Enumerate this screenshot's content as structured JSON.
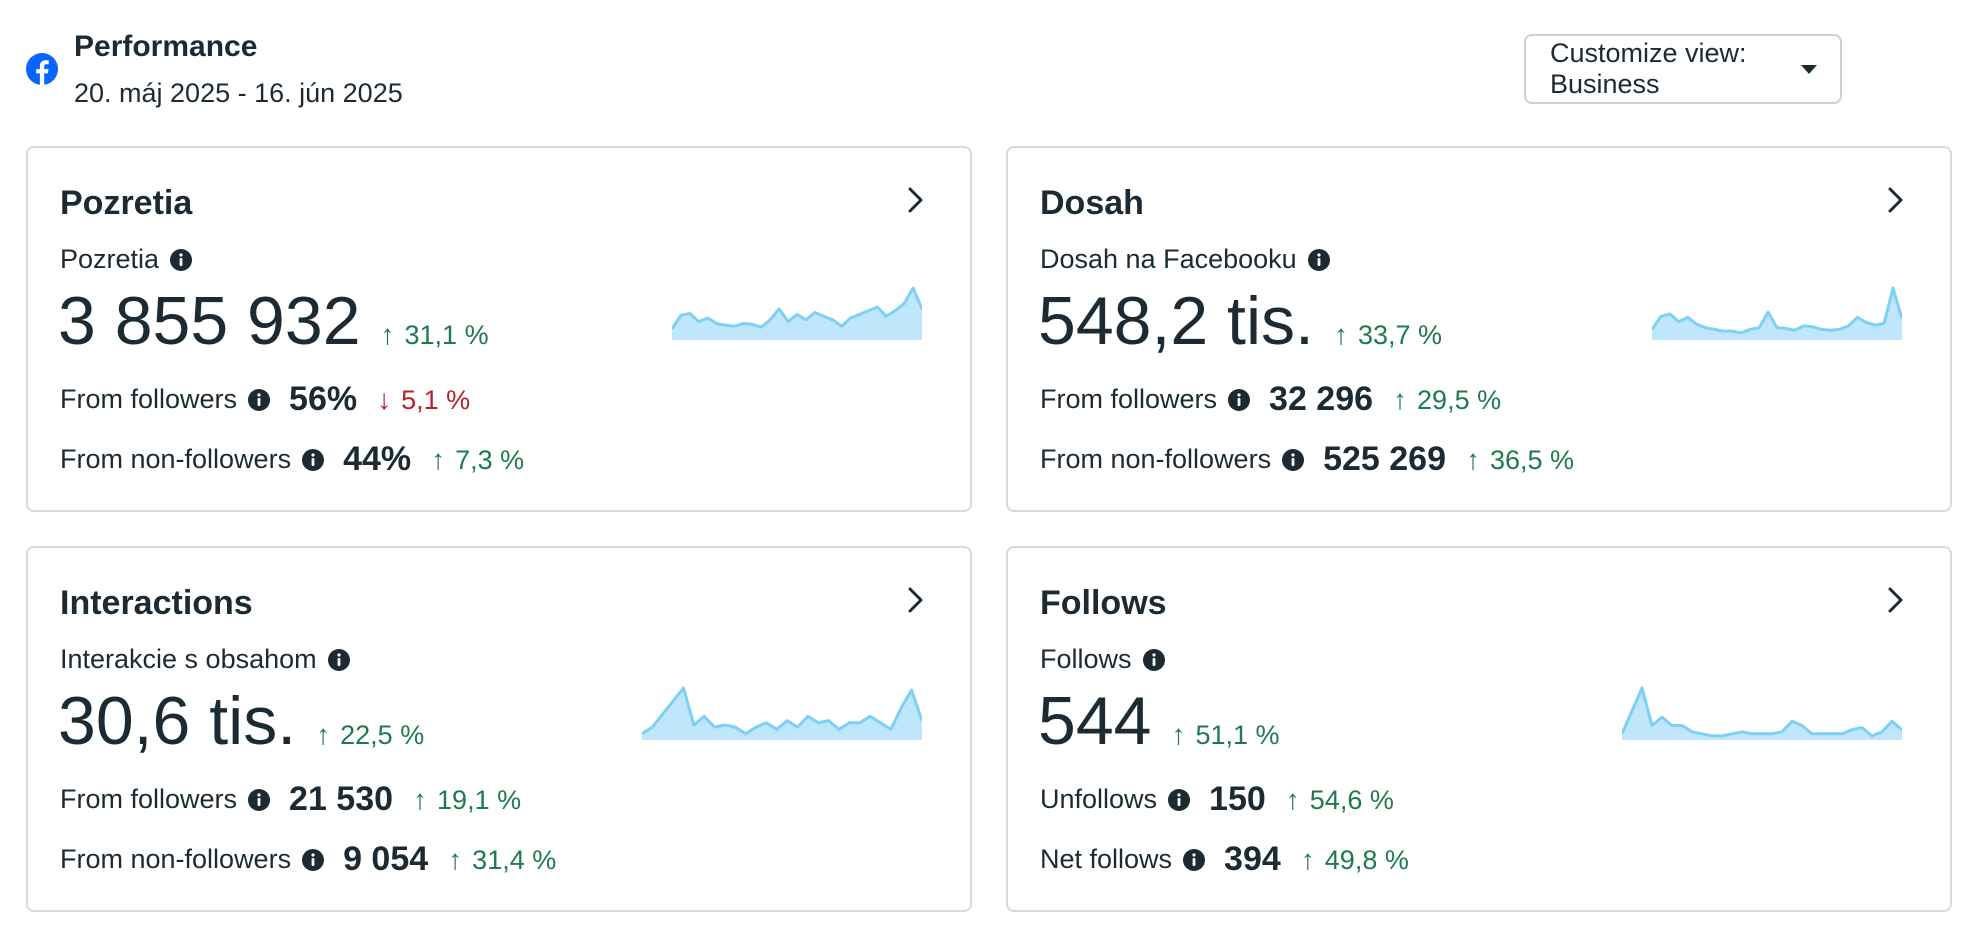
{
  "header": {
    "title": "Performance",
    "date_range": "20. máj 2025 - 16. jún 2025",
    "customize_label": "Customize view: Business",
    "logo_icon": "facebook-icon"
  },
  "colors": {
    "positive": "#1f7a4d",
    "negative": "#b8202a",
    "sparkline_stroke": "#7fd0f5",
    "sparkline_fill": "#bfe6fa",
    "facebook_blue": "#0866ff"
  },
  "cards": [
    {
      "title": "Pozretia",
      "metric_label": "Pozretia",
      "big_value": "3 855 932",
      "big_delta": "31,1 %",
      "big_dir": "up",
      "row1_label": "From followers",
      "row1_value": "56%",
      "row1_delta": "5,1 %",
      "row1_dir": "down",
      "row2_label": "From non-followers",
      "row2_value": "44%",
      "row2_delta": "7,3 %",
      "row2_dir": "up",
      "sparkline": [
        10,
        25,
        27,
        18,
        22,
        16,
        14,
        13,
        16,
        15,
        12,
        20,
        32,
        18,
        26,
        20,
        28,
        24,
        20,
        13,
        22,
        26,
        30,
        34,
        24,
        30,
        38,
        55,
        32
      ]
    },
    {
      "title": "Dosah",
      "metric_label": "Dosah na Facebooku",
      "big_value": "548,2 tis.",
      "big_delta": "33,7 %",
      "big_dir": "up",
      "row1_label": "From followers",
      "row1_value": "32 296",
      "row1_delta": "29,5 %",
      "row1_dir": "up",
      "row2_label": "From non-followers",
      "row2_value": "525 269",
      "row2_delta": "36,5 %",
      "row2_dir": "up",
      "sparkline": [
        10,
        25,
        28,
        19,
        24,
        16,
        12,
        10,
        8,
        8,
        6,
        10,
        12,
        30,
        12,
        11,
        9,
        14,
        13,
        10,
        9,
        10,
        14,
        24,
        18,
        15,
        17,
        58,
        22
      ]
    },
    {
      "title": "Interactions",
      "metric_label": "Interakcie s obsahom",
      "big_value": "30,6 tis.",
      "big_delta": "22,5 %",
      "big_dir": "up",
      "row1_label": "From followers",
      "row1_value": "21 530",
      "row1_delta": "19,1 %",
      "row1_dir": "up",
      "row2_label": "From non-followers",
      "row2_value": "9 054",
      "row2_delta": "31,4 %",
      "row2_dir": "up",
      "sparkline": [
        4,
        10,
        22,
        34,
        46,
        12,
        20,
        10,
        12,
        10,
        4,
        10,
        14,
        8,
        16,
        10,
        20,
        14,
        16,
        8,
        14,
        14,
        20,
        14,
        8,
        28,
        44,
        16
      ],
      "sparkline_wide": true
    },
    {
      "title": "Follows",
      "metric_label": "Follows",
      "big_value": "544",
      "big_delta": "51,1 %",
      "big_dir": "up",
      "row1_label": "Unfollows",
      "row1_value": "150",
      "row1_delta": "54,6 %",
      "row1_dir": "up",
      "row2_label": "Net follows",
      "row2_value": "394",
      "row2_delta": "49,8 %",
      "row2_dir": "up",
      "sparkline": [
        4,
        26,
        48,
        12,
        20,
        12,
        12,
        6,
        4,
        2,
        2,
        4,
        6,
        4,
        4,
        4,
        6,
        16,
        12,
        4,
        4,
        4,
        4,
        8,
        10,
        2,
        6,
        16,
        8
      ],
      "sparkline_wide": true
    }
  ]
}
